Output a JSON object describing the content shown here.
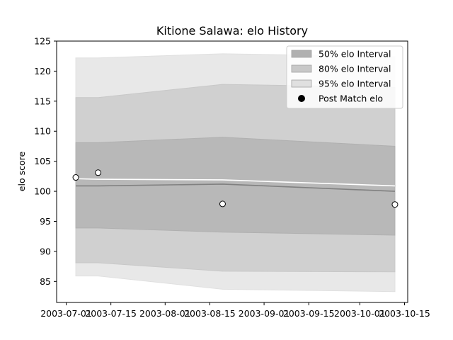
{
  "chart_data": {
    "type": "line",
    "title": "Kitione Salawa: elo History",
    "xlabel": "",
    "ylabel": "elo score",
    "x_ticks": [
      "2003-07-01",
      "2003-07-15",
      "2003-08-01",
      "2003-08-15",
      "2003-09-01",
      "2003-09-15",
      "2003-10-01",
      "2003-10-15"
    ],
    "y_ticks": [
      85,
      90,
      95,
      100,
      105,
      110,
      115,
      120,
      125
    ],
    "xlim": [
      "2003-06-28",
      "2003-10-16"
    ],
    "ylim": [
      81.5,
      125
    ],
    "grid": false,
    "legend_position": "top-right",
    "x": [
      "2003-07-04",
      "2003-07-11",
      "2003-08-19",
      "2003-10-12"
    ],
    "post_match_elo": [
      102.3,
      103.1,
      97.9,
      97.8
    ],
    "series": [
      {
        "name": "50% elo Interval",
        "lower": [
          93.9,
          93.9,
          93.2,
          92.7
        ],
        "upper": [
          108.1,
          108.1,
          109.0,
          107.5
        ],
        "color": "#b0b0b0"
      },
      {
        "name": "80% elo Interval",
        "lower": [
          88.1,
          88.1,
          86.7,
          86.6
        ],
        "upper": [
          115.6,
          115.6,
          117.8,
          117.3
        ],
        "color": "#c8c8c8"
      },
      {
        "name": "95% elo Interval",
        "lower": [
          85.9,
          85.9,
          83.7,
          83.3
        ],
        "upper": [
          122.2,
          122.2,
          122.9,
          122.4
        ],
        "color": "#e0e0e0"
      },
      {
        "name": "Post Match elo",
        "color": "#000000"
      }
    ],
    "mean_line": [
      100.9,
      100.9,
      101.2,
      100.0
    ],
    "trend_line": [
      102.1,
      102.0,
      101.9,
      100.9
    ]
  }
}
